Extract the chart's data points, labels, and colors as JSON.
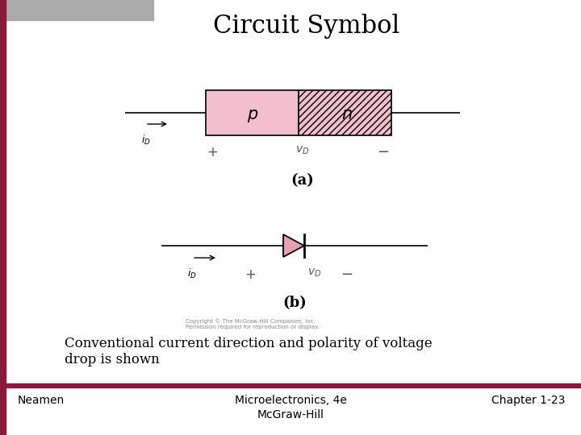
{
  "title": "Circuit Symbol",
  "title_fontsize": 22,
  "bg_color": "#ffffff",
  "dark_red": "#8B1A3A",
  "gray_bar_color": "#aaaaaa",
  "p_fill": "#f2c0cc",
  "n_fill": "#f2c0cc",
  "line_color": "#000000",
  "footer_text_left": "Neamen",
  "footer_text_center": "Microelectronics, 4e\nMcGraw-Hill",
  "footer_text_right": "Chapter 1-23",
  "caption": "Conventional current direction and polarity of voltage\ndrop is shown",
  "copyright_text": "Copyright © The McGraw-Hill Companies, Inc.\nPermission required for reproduction or display.",
  "label_a": "(a)",
  "label_b": "(b)",
  "diode_fill": "#e8a0b4"
}
